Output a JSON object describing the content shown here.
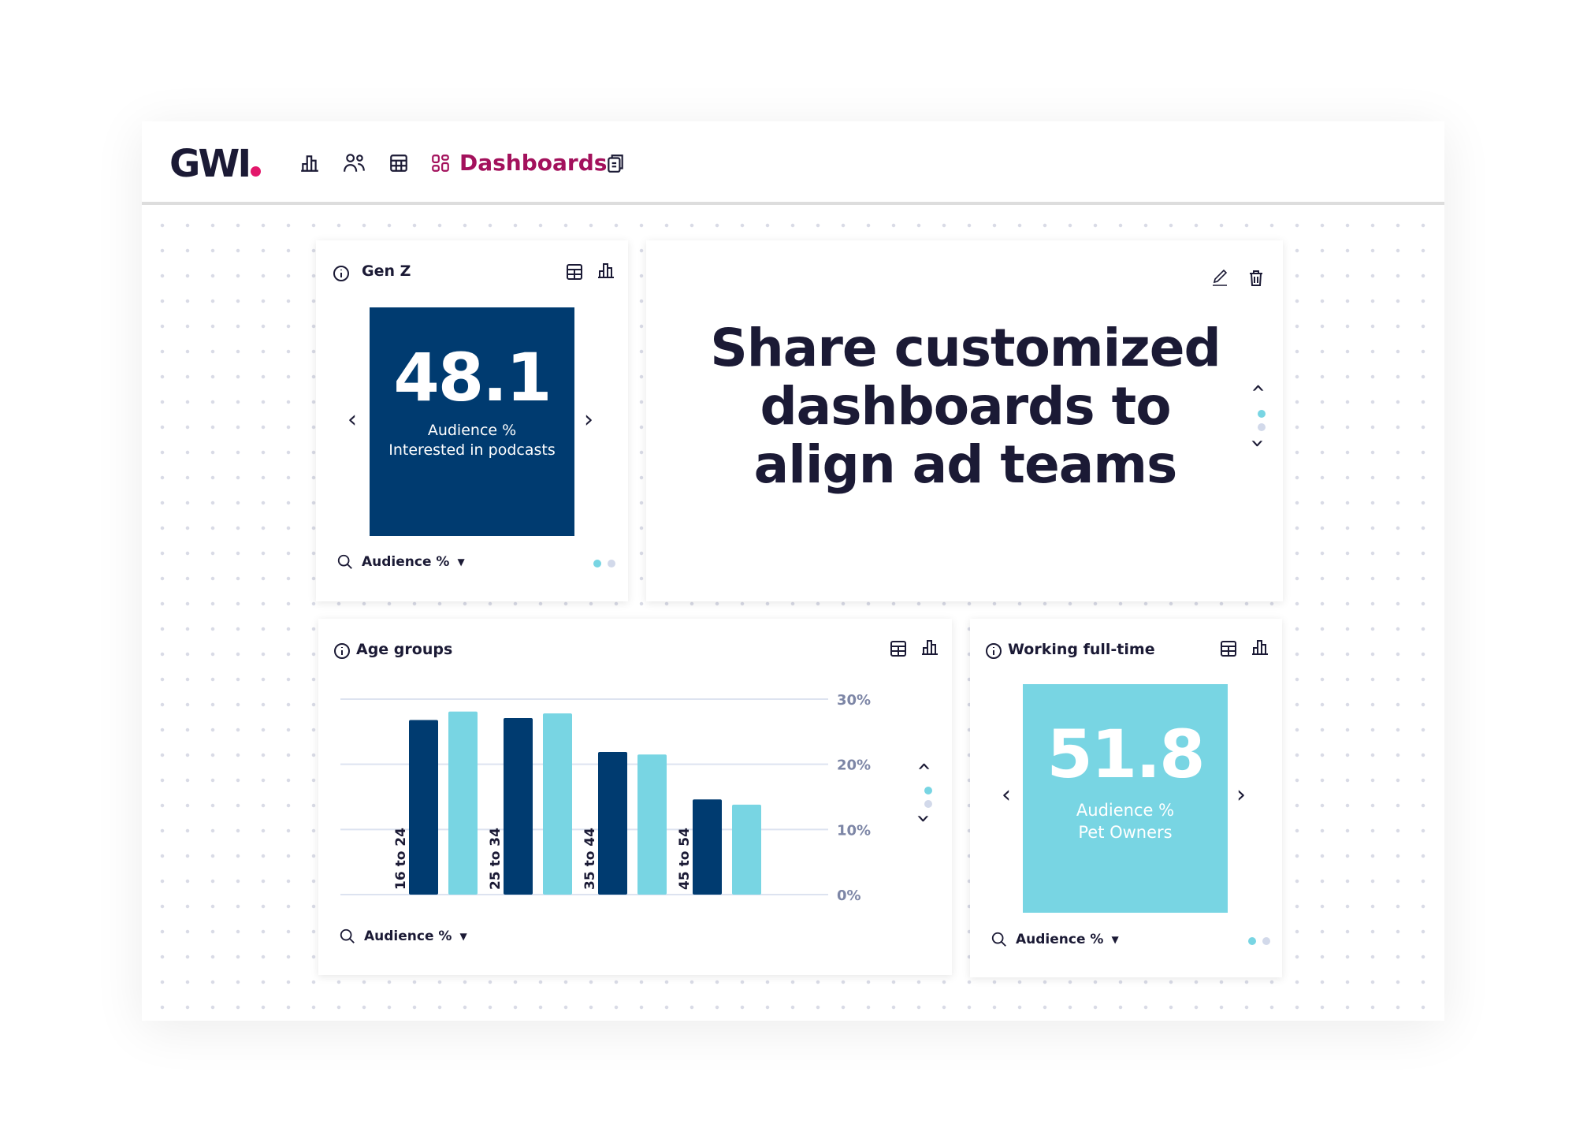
{
  "header": {
    "logo": "GWI",
    "nav_active": "Dashboards",
    "nav_icons": [
      "bar-chart-icon",
      "audiences-icon",
      "table-icon",
      "dashboards-icon",
      "reports-icon"
    ]
  },
  "colors": {
    "brand_accent": "#e3176b",
    "nav_active": "#a3115c",
    "dark_blue": "#003b70",
    "light_blue": "#78d5e3"
  },
  "cards": {
    "genz": {
      "title": "Gen Z",
      "value": "48.1",
      "metric": "Audience %",
      "label": "Interested in podcasts",
      "footer": "Audience %"
    },
    "promo": {
      "headline": "Share customized dashboards to align ad teams"
    },
    "age": {
      "title": "Age groups",
      "footer": "Audience %"
    },
    "working": {
      "title": "Working full-time",
      "value": "51.8",
      "metric": "Audience %",
      "label": "Pet Owners",
      "footer": "Audience %"
    }
  },
  "chart_data": {
    "type": "bar",
    "categories": [
      "16 to 24",
      "25 to 34",
      "35 to 44",
      "45 to 54"
    ],
    "series": [
      {
        "values": [
          26.8,
          27.1,
          21.9,
          14.6
        ],
        "color": "#003b70"
      },
      {
        "values": [
          28.1,
          27.8,
          21.5,
          13.8
        ],
        "color": "#78d5e3"
      }
    ],
    "yticks": [
      "0%",
      "10%",
      "20%",
      "30%"
    ],
    "ylim": [
      0,
      30
    ],
    "grid": true
  }
}
